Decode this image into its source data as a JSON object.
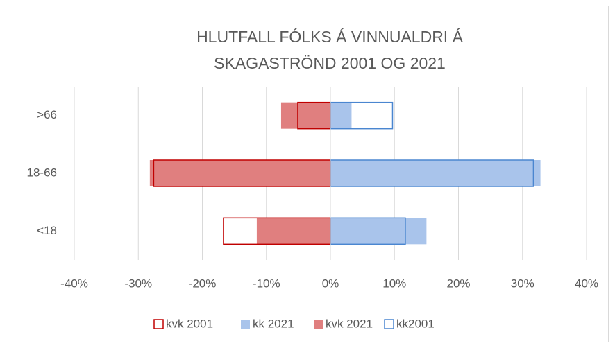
{
  "chart_data": {
    "type": "bar",
    "orientation": "horizontal",
    "title": "HLUTFALL FÓLKS Á VINNUALDRI Á SKAGASTRÖND 2001 OG 2021",
    "categories": [
      ">66",
      "18-66",
      "<18"
    ],
    "series": [
      {
        "name": "kvk 2001",
        "color": "#c00000",
        "filled": false,
        "values": [
          -5.1,
          -27.6,
          -16.7
        ]
      },
      {
        "name": "kk 2021",
        "color": "#a9c4eb",
        "filled": true,
        "values": [
          3.3,
          32.8,
          15.0
        ]
      },
      {
        "name": "kvk 2021",
        "color": "#e07f7f",
        "filled": true,
        "values": [
          -7.7,
          -28.2,
          -11.5
        ]
      },
      {
        "name": "kk2001",
        "color": "#4a86d0",
        "filled": false,
        "values": [
          9.7,
          31.7,
          11.7
        ]
      }
    ],
    "xlim": [
      -40,
      40
    ],
    "xticks": [
      {
        "value": -40,
        "label": "-40%"
      },
      {
        "value": -30,
        "label": "-30%"
      },
      {
        "value": -20,
        "label": "-20%"
      },
      {
        "value": -10,
        "label": "-10%"
      },
      {
        "value": 0,
        "label": "0%"
      },
      {
        "value": 10,
        "label": "10%"
      },
      {
        "value": 20,
        "label": "20%"
      },
      {
        "value": 30,
        "label": "30%"
      },
      {
        "value": 40,
        "label": "40%"
      }
    ],
    "grid": true,
    "legend": "bottom"
  }
}
